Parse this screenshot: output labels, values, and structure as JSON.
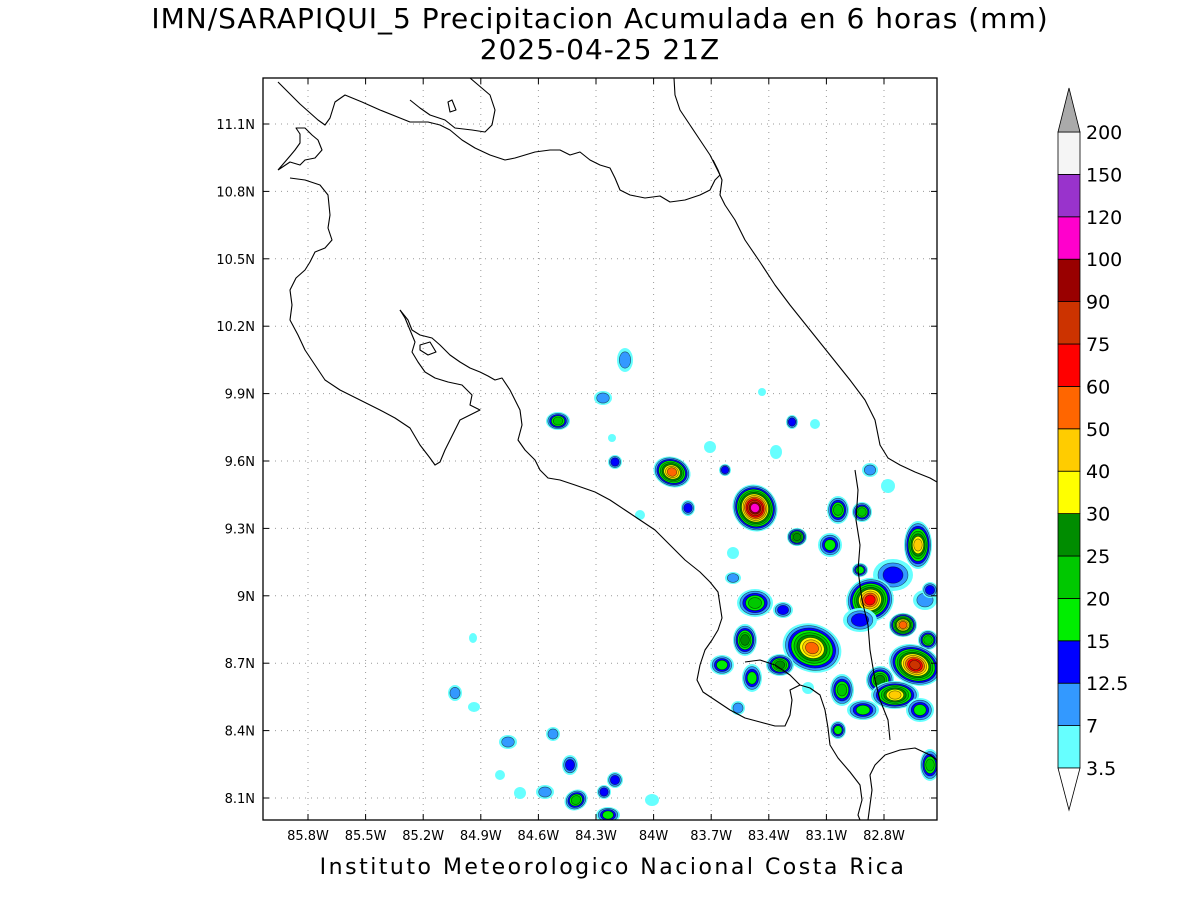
{
  "title": {
    "line1": "IMN/SARAPIQUI_5 Precipitacion Acumulada en 6 horas (mm)",
    "line2": "2025-04-25 21Z"
  },
  "footer": "Instituto Meteorologico Nacional Costa Rica",
  "map": {
    "lon_ticks": [
      "85.8W",
      "85.5W",
      "85.2W",
      "84.9W",
      "84.6W",
      "84.3W",
      "84W",
      "83.7W",
      "83.4W",
      "83.1W",
      "82.8W"
    ],
    "lat_ticks": [
      "11.1N",
      "10.8N",
      "10.5N",
      "10.2N",
      "9.9N",
      "9.6N",
      "9.3N",
      "9N",
      "8.7N",
      "8.4N",
      "8.1N"
    ],
    "grid": true
  },
  "colorbar": {
    "levels": [
      "3.5",
      "7",
      "12.5",
      "15",
      "20",
      "25",
      "30",
      "40",
      "50",
      "60",
      "75",
      "90",
      "100",
      "120",
      "150",
      "200"
    ],
    "colors": [
      "#66ffff",
      "#3399ff",
      "#0000ff",
      "#00ee00",
      "#00c800",
      "#008c00",
      "#ffff00",
      "#ffcc00",
      "#ff6600",
      "#ff0000",
      "#cc3300",
      "#990000",
      "#ff00cc",
      "#9933cc",
      "#f5f5f5",
      "#aaaaaa"
    ],
    "under_color": "#ffffff",
    "over_color": "#aaaaaa"
  }
}
